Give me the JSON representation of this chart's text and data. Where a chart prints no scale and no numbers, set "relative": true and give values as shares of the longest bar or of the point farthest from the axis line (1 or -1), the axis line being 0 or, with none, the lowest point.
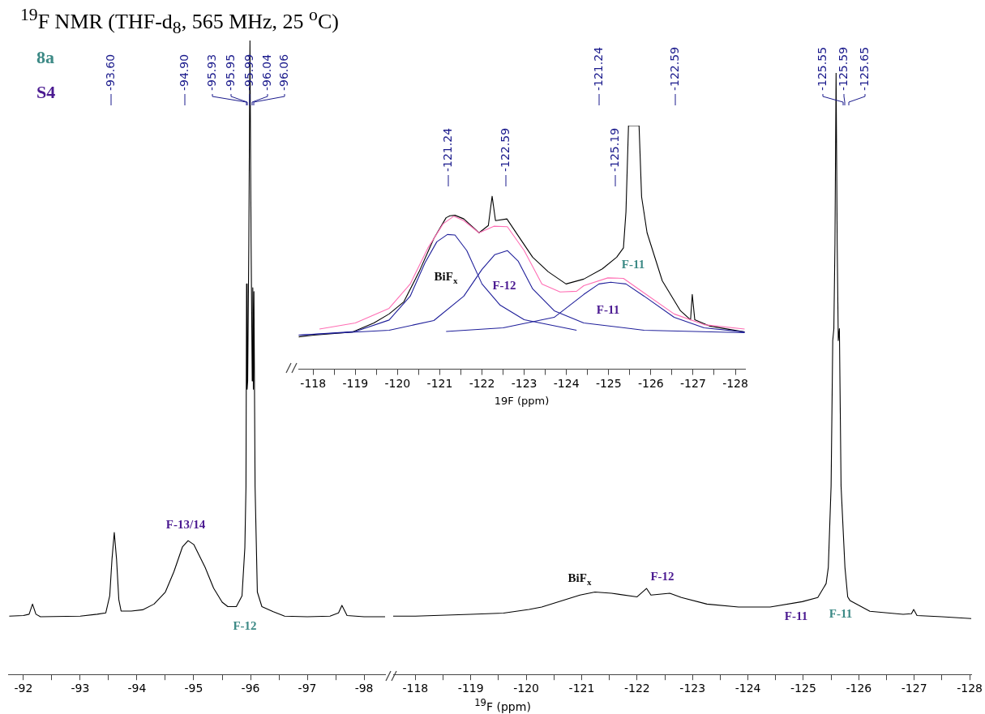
{
  "chart_data": [
    {
      "type": "line",
      "relative": true,
      "title": "$^{19}$F NMR (THF-d$_{8}$, 565 MHz, 25 $^{o}$C)",
      "xlim": [
        -91.73,
        -98.37
      ],
      "xticks": [
        -92,
        {
          "value": -92.5,
          "label": null
        },
        -93,
        {
          "value": -93.5,
          "label": null
        },
        -94,
        {
          "value": -94.5,
          "label": null
        },
        -95,
        {
          "value": -95.5,
          "label": null
        },
        -96,
        {
          "value": -96.5,
          "label": null
        },
        -97,
        {
          "value": -97.5,
          "label": null
        },
        -98
      ],
      "series": [
        {
          "color": "#000000",
          "x": [
            -91.75,
            -92.0,
            -92.1,
            -92.16,
            -92.22,
            -92.3,
            -93.0,
            -93.3,
            -93.45,
            -93.52,
            -93.56,
            -93.6,
            -93.64,
            -93.68,
            -93.72,
            -93.9,
            -94.1,
            -94.3,
            -94.5,
            -94.65,
            -94.8,
            -94.9,
            -95.0,
            -95.2,
            -95.35,
            -95.5,
            -95.6,
            -95.75,
            -95.85,
            -95.9,
            -95.92,
            -95.93,
            -95.94,
            -95.95,
            -95.97,
            -95.99,
            -96.01,
            -96.03,
            -96.04,
            -96.05,
            -96.06,
            -96.08,
            -96.12,
            -96.2,
            -96.4,
            -96.6,
            -97.0,
            -97.4,
            -97.55,
            -97.61,
            -97.7,
            -98.0,
            -98.37
          ],
          "values": [
            0.092,
            0.093,
            0.095,
            0.111,
            0.095,
            0.091,
            0.092,
            0.095,
            0.097,
            0.124,
            0.182,
            0.224,
            0.182,
            0.118,
            0.1,
            0.1,
            0.102,
            0.111,
            0.13,
            0.162,
            0.201,
            0.211,
            0.205,
            0.169,
            0.136,
            0.114,
            0.107,
            0.107,
            0.124,
            0.2,
            0.297,
            0.616,
            0.45,
            0.463,
            0.68,
            1,
            0.68,
            0.463,
            0.61,
            0.45,
            0.604,
            0.297,
            0.13,
            0.107,
            0.099,
            0.092,
            0.091,
            0.092,
            0.097,
            0.109,
            0.093,
            0.091,
            0.091
          ]
        }
      ],
      "annotations": [
        "8a",
        "S4",
        "-93.60",
        "-94.90",
        "-95.93",
        "-95.95",
        "-95.99",
        "-96.04",
        "-96.06",
        "F-13/14",
        "F-12"
      ]
    },
    {
      "type": "line",
      "relative": true,
      "xlabel": "$^{19}$F (ppm)",
      "xlim": [
        -117.6,
        -128.03
      ],
      "xticks": [
        -118,
        {
          "value": -118.5,
          "label": null
        },
        -119,
        {
          "value": -119.5,
          "label": null
        },
        -120,
        {
          "value": -120.5,
          "label": null
        },
        -121,
        {
          "value": -121.5,
          "label": null
        },
        -122,
        {
          "value": -122.5,
          "label": null
        },
        -123,
        {
          "value": -123.5,
          "label": null
        },
        -124,
        {
          "value": -124.5,
          "label": null
        },
        -125,
        {
          "value": -125.5,
          "label": null
        },
        -126,
        {
          "value": -126.5,
          "label": null
        },
        -127,
        {
          "value": -127.5,
          "label": null
        },
        -128
      ],
      "series": [
        {
          "color": "#000000",
          "x": [
            -117.6,
            -118.0,
            -119.0,
            -119.59,
            -120.05,
            -120.28,
            -120.97,
            -121.24,
            -121.54,
            -122.0,
            -122.17,
            -122.25,
            -122.59,
            -122.8,
            -123.26,
            -123.83,
            -124.4,
            -124.98,
            -125.26,
            -125.41,
            -125.45,
            -125.5,
            -125.53,
            -125.55,
            -125.57,
            -125.59,
            -125.61,
            -125.63,
            -125.65,
            -125.68,
            -125.75,
            -125.8,
            -125.84,
            -126.2,
            -126.8,
            -126.95,
            -126.99,
            -127.05,
            -127.5,
            -128.03
          ],
          "values": [
            0.097,
            0.097,
            0.1,
            0.102,
            0.108,
            0.112,
            0.132,
            0.137,
            0.135,
            0.129,
            0.143,
            0.132,
            0.135,
            0.128,
            0.117,
            0.112,
            0.112,
            0.121,
            0.128,
            0.151,
            0.178,
            0.313,
            0.555,
            0.575,
            0.717,
            1,
            0.717,
            0.555,
            0.575,
            0.313,
            0.178,
            0.129,
            0.123,
            0.105,
            0.1,
            0.101,
            0.108,
            0.098,
            0.096,
            0.093
          ]
        }
      ],
      "annotations": [
        "-121.24",
        "-122.59",
        "-125.55",
        "-125.59",
        "-125.65",
        "BiF$_{x}$",
        "F-12",
        "F-11",
        "F-11"
      ]
    },
    {
      "type": "line",
      "relative": true,
      "xlabel": "19F (ppm)",
      "xlim": [
        -117.65,
        -128.23
      ],
      "xticks": [
        -118,
        {
          "value": -118.5,
          "label": null
        },
        -119,
        {
          "value": -119.5,
          "label": null
        },
        -120,
        {
          "value": -120.5,
          "label": null
        },
        -121,
        {
          "value": -121.5,
          "label": null
        },
        -122,
        {
          "value": -122.5,
          "label": null
        },
        -123,
        {
          "value": -123.5,
          "label": null
        },
        -124,
        {
          "value": -124.5,
          "label": null
        },
        -125,
        {
          "value": -125.5,
          "label": null
        },
        -126,
        {
          "value": -126.5,
          "label": null
        },
        -127,
        {
          "value": -127.5,
          "label": null
        },
        -128
      ],
      "series": [
        {
          "color": "#1f1f9a",
          "x": [
            -117.66,
            -119.0,
            -119.8,
            -120.3,
            -120.65,
            -120.93,
            -121.18,
            -121.36,
            -121.64,
            -122.0,
            -122.43,
            -123.0,
            -124.24
          ],
          "values": [
            0.14,
            0.155,
            0.202,
            0.3,
            0.437,
            0.523,
            0.553,
            0.551,
            0.487,
            0.35,
            0.263,
            0.203,
            0.16
          ]
        },
        {
          "color": "#1f1f9a",
          "x": [
            -117.66,
            -119.8,
            -120.86,
            -121.57,
            -122.0,
            -122.3,
            -122.6,
            -122.86,
            -123.2,
            -123.71,
            -124.41,
            -125.84,
            -128.22
          ],
          "values": [
            0.14,
            0.16,
            0.2,
            0.3,
            0.41,
            0.47,
            0.487,
            0.443,
            0.33,
            0.24,
            0.19,
            0.16,
            0.15
          ]
        },
        {
          "color": "#1f1f9a",
          "x": [
            -121.15,
            -122.5,
            -123.71,
            -124.41,
            -124.77,
            -125.05,
            -125.41,
            -125.84,
            -126.55,
            -127.26,
            -128.22
          ],
          "values": [
            0.155,
            0.17,
            0.213,
            0.307,
            0.35,
            0.357,
            0.35,
            0.3,
            0.213,
            0.17,
            0.153
          ]
        },
        {
          "color": "#ff6eb4",
          "x": [
            -118.15,
            -119.0,
            -119.8,
            -120.3,
            -120.72,
            -121.08,
            -121.33,
            -121.57,
            -121.93,
            -122.28,
            -122.6,
            -123.0,
            -123.42,
            -123.85,
            -124.24,
            -124.41,
            -124.98,
            -125.35,
            -125.84,
            -126.55,
            -127.26,
            -128.22
          ],
          "values": [
            0.165,
            0.19,
            0.25,
            0.35,
            0.498,
            0.597,
            0.628,
            0.61,
            0.56,
            0.587,
            0.585,
            0.487,
            0.35,
            0.317,
            0.32,
            0.343,
            0.375,
            0.373,
            0.313,
            0.227,
            0.183,
            0.165
          ]
        },
        {
          "color": "#000000",
          "x": [
            -117.66,
            -118.02,
            -118.94,
            -119.44,
            -119.8,
            -120.15,
            -120.51,
            -120.86,
            -121.15,
            -121.24,
            -121.36,
            -121.57,
            -121.93,
            -122.15,
            -122.24,
            -122.32,
            -122.59,
            -122.86,
            -123.2,
            -123.57,
            -123.99,
            -124.41,
            -124.85,
            -125.19,
            -125.35,
            -125.41,
            -125.47,
            -125.72,
            -125.78,
            -125.91,
            -126.27,
            -126.7,
            -126.94,
            -126.98,
            -127.04,
            -127.4,
            -128.22
          ],
          "values": [
            0.133,
            0.14,
            0.153,
            0.19,
            0.227,
            0.277,
            0.4,
            0.537,
            0.622,
            0.63,
            0.632,
            0.617,
            0.56,
            0.59,
            0.71,
            0.61,
            0.617,
            0.547,
            0.46,
            0.4,
            0.35,
            0.37,
            0.412,
            0.46,
            0.498,
            0.647,
            1,
            1,
            0.708,
            0.56,
            0.363,
            0.24,
            0.203,
            0.307,
            0.203,
            0.177,
            0.153
          ]
        }
      ],
      "annotations": [
        "-121.24",
        "-122.59",
        "-125.19",
        "BiF$_{x}$",
        "F-12",
        "F-11",
        "F-11"
      ]
    }
  ]
}
